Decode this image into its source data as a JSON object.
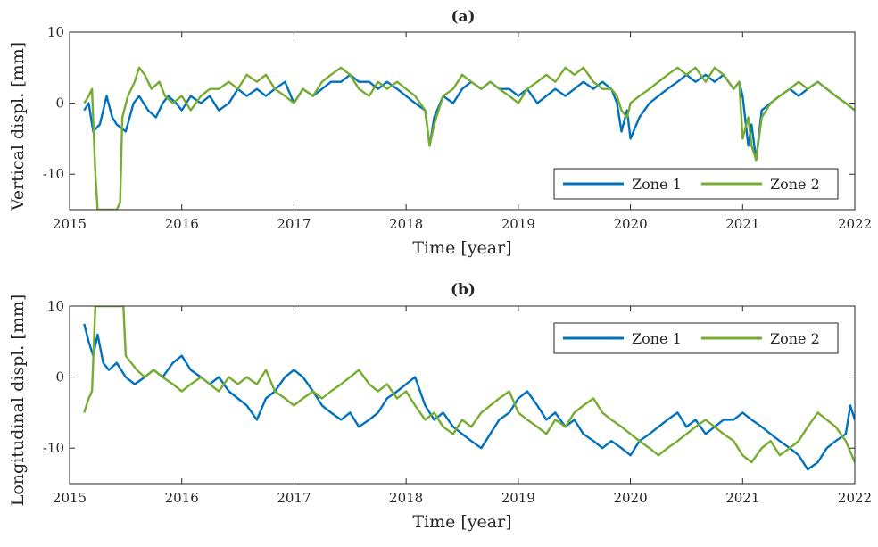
{
  "chart_data": [
    {
      "type": "line",
      "title": "(a)",
      "xlabel": "Time [year]",
      "ylabel": "Vertical displ. [mm]",
      "xlim": [
        2015,
        2022
      ],
      "ylim": [
        -15,
        10
      ],
      "xticks": [
        "2015",
        "2016",
        "2017",
        "2018",
        "2019",
        "2020",
        "2021",
        "2022"
      ],
      "yticks": [
        "-10",
        "0",
        "10"
      ],
      "legend": "bottom-right",
      "grid": false,
      "series": [
        {
          "name": "Zone 1",
          "color": "#0072BD",
          "x": [
            2015.13,
            2015.17,
            2015.21,
            2015.27,
            2015.33,
            2015.38,
            2015.42,
            2015.5,
            2015.57,
            2015.62,
            2015.7,
            2015.77,
            2015.83,
            2015.88,
            2015.95,
            2016.0,
            2016.08,
            2016.17,
            2016.25,
            2016.33,
            2016.42,
            2016.5,
            2016.58,
            2016.67,
            2016.75,
            2016.83,
            2016.92,
            2017.0,
            2017.08,
            2017.17,
            2017.25,
            2017.33,
            2017.42,
            2017.5,
            2017.58,
            2017.67,
            2017.75,
            2017.83,
            2017.92,
            2018.0,
            2018.08,
            2018.17,
            2018.21,
            2018.25,
            2018.33,
            2018.42,
            2018.5,
            2018.58,
            2018.67,
            2018.75,
            2018.83,
            2018.92,
            2019.0,
            2019.08,
            2019.17,
            2019.25,
            2019.33,
            2019.42,
            2019.5,
            2019.58,
            2019.67,
            2019.75,
            2019.83,
            2019.88,
            2019.92,
            2019.97,
            2020.0,
            2020.08,
            2020.17,
            2020.25,
            2020.33,
            2020.42,
            2020.5,
            2020.58,
            2020.67,
            2020.75,
            2020.83,
            2020.92,
            2020.97,
            2021.0,
            2021.05,
            2021.08,
            2021.12,
            2021.17,
            2021.25,
            2021.33,
            2021.42,
            2021.5,
            2021.58,
            2021.67,
            2021.75,
            2021.83,
            2021.92,
            2022.0
          ],
          "y": [
            -1,
            0,
            -4,
            -3,
            1,
            -2,
            -3,
            -4,
            0,
            1,
            -1,
            -2,
            0,
            1,
            0,
            -1,
            1,
            0,
            1,
            -1,
            0,
            2,
            1,
            2,
            1,
            2,
            3,
            0,
            2,
            1,
            2,
            3,
            3,
            4,
            3,
            3,
            2,
            3,
            2,
            1,
            0,
            -1,
            -6,
            -2,
            1,
            0,
            2,
            3,
            2,
            3,
            2,
            2,
            1,
            2,
            0,
            1,
            2,
            1,
            2,
            3,
            2,
            3,
            2,
            0,
            -4,
            -1,
            -5,
            -2,
            0,
            1,
            2,
            3,
            4,
            3,
            4,
            3,
            4,
            2,
            3,
            1,
            -6,
            -3,
            -8,
            -1,
            0,
            1,
            2,
            1,
            2,
            3,
            2,
            1,
            0,
            -1
          ]
        },
        {
          "name": "Zone 2",
          "color": "#77AC30",
          "x": [
            2015.13,
            2015.17,
            2015.2,
            2015.23,
            2015.25,
            2015.3,
            2015.35,
            2015.42,
            2015.45,
            2015.47,
            2015.52,
            2015.58,
            2015.62,
            2015.67,
            2015.73,
            2015.8,
            2015.85,
            2015.92,
            2016.0,
            2016.08,
            2016.17,
            2016.25,
            2016.33,
            2016.42,
            2016.5,
            2016.58,
            2016.67,
            2016.75,
            2016.83,
            2016.92,
            2017.0,
            2017.08,
            2017.17,
            2017.25,
            2017.33,
            2017.42,
            2017.5,
            2017.58,
            2017.67,
            2017.75,
            2017.83,
            2017.92,
            2018.0,
            2018.08,
            2018.17,
            2018.21,
            2018.25,
            2018.33,
            2018.42,
            2018.5,
            2018.58,
            2018.67,
            2018.75,
            2018.83,
            2018.92,
            2019.0,
            2019.08,
            2019.17,
            2019.25,
            2019.33,
            2019.42,
            2019.5,
            2019.58,
            2019.67,
            2019.75,
            2019.83,
            2019.88,
            2019.92,
            2019.97,
            2020.0,
            2020.08,
            2020.17,
            2020.25,
            2020.33,
            2020.42,
            2020.5,
            2020.58,
            2020.67,
            2020.75,
            2020.83,
            2020.92,
            2020.97,
            2021.0,
            2021.05,
            2021.08,
            2021.12,
            2021.17,
            2021.25,
            2021.33,
            2021.42,
            2021.5,
            2021.58,
            2021.67,
            2021.75,
            2021.83,
            2021.92,
            2022.0
          ],
          "y": [
            0,
            1,
            2,
            -10,
            -15,
            -15,
            -15,
            -15,
            -14,
            -2,
            1,
            3,
            5,
            4,
            2,
            3,
            1,
            0,
            1,
            -1,
            1,
            2,
            2,
            3,
            2,
            4,
            3,
            4,
            2,
            1,
            0,
            2,
            1,
            3,
            4,
            5,
            4,
            2,
            1,
            3,
            2,
            3,
            2,
            1,
            -1,
            -6,
            -3,
            1,
            2,
            4,
            3,
            2,
            3,
            2,
            1,
            0,
            2,
            3,
            4,
            3,
            5,
            4,
            5,
            3,
            2,
            2,
            1,
            -1,
            -2,
            0,
            1,
            2,
            3,
            4,
            5,
            4,
            5,
            3,
            5,
            4,
            2,
            3,
            -5,
            -2,
            -6,
            -8,
            -2,
            0,
            1,
            2,
            3,
            2,
            3,
            2,
            1,
            0,
            -1
          ]
        }
      ]
    },
    {
      "type": "line",
      "title": "(b)",
      "xlabel": "Time [year]",
      "ylabel": "Longitudinal displ. [mm]",
      "xlim": [
        2015,
        2022
      ],
      "ylim": [
        -15,
        10
      ],
      "xticks": [
        "2015",
        "2016",
        "2017",
        "2018",
        "2019",
        "2020",
        "2021",
        "2022"
      ],
      "yticks": [
        "-10",
        "0",
        "10"
      ],
      "legend": "top-right",
      "grid": false,
      "series": [
        {
          "name": "Zone 1",
          "color": "#0072BD",
          "x": [
            2015.13,
            2015.17,
            2015.21,
            2015.25,
            2015.3,
            2015.35,
            2015.42,
            2015.5,
            2015.58,
            2015.67,
            2015.75,
            2015.83,
            2015.92,
            2016.0,
            2016.08,
            2016.17,
            2016.25,
            2016.33,
            2016.42,
            2016.5,
            2016.58,
            2016.67,
            2016.75,
            2016.83,
            2016.92,
            2017.0,
            2017.08,
            2017.17,
            2017.25,
            2017.33,
            2017.42,
            2017.5,
            2017.58,
            2017.67,
            2017.75,
            2017.83,
            2017.92,
            2018.0,
            2018.08,
            2018.17,
            2018.25,
            2018.33,
            2018.42,
            2018.5,
            2018.58,
            2018.67,
            2018.75,
            2018.83,
            2018.92,
            2019.0,
            2019.08,
            2019.17,
            2019.25,
            2019.33,
            2019.42,
            2019.5,
            2019.58,
            2019.67,
            2019.75,
            2019.83,
            2019.92,
            2020.0,
            2020.08,
            2020.17,
            2020.25,
            2020.33,
            2020.42,
            2020.5,
            2020.58,
            2020.67,
            2020.75,
            2020.83,
            2020.92,
            2021.0,
            2021.08,
            2021.17,
            2021.25,
            2021.33,
            2021.42,
            2021.5,
            2021.58,
            2021.67,
            2021.75,
            2021.83,
            2021.92,
            2021.96,
            2022.0
          ],
          "y": [
            7.5,
            5,
            3,
            6,
            2,
            1,
            2,
            0,
            -1,
            0,
            1,
            0,
            2,
            3,
            1,
            0,
            -1,
            0,
            -2,
            -3,
            -4,
            -6,
            -3,
            -2,
            0,
            1,
            0,
            -2,
            -4,
            -5,
            -6,
            -5,
            -7,
            -6,
            -5,
            -3,
            -2,
            -1,
            0,
            -4,
            -6,
            -5,
            -7,
            -8,
            -9,
            -10,
            -8,
            -6,
            -5,
            -3,
            -2,
            -4,
            -6,
            -5,
            -7,
            -6,
            -8,
            -9,
            -10,
            -9,
            -10,
            -11,
            -9,
            -8,
            -7,
            -6,
            -5,
            -7,
            -6,
            -8,
            -7,
            -6,
            -6,
            -5,
            -6,
            -7,
            -8,
            -9,
            -10,
            -11,
            -13,
            -12,
            -10,
            -9,
            -8,
            -4,
            -6
          ]
        },
        {
          "name": "Zone 2",
          "color": "#77AC30",
          "x": [
            2015.13,
            2015.17,
            2015.2,
            2015.23,
            2015.25,
            2015.3,
            2015.35,
            2015.42,
            2015.45,
            2015.48,
            2015.5,
            2015.55,
            2015.6,
            2015.67,
            2015.75,
            2015.83,
            2015.92,
            2016.0,
            2016.08,
            2016.17,
            2016.25,
            2016.33,
            2016.42,
            2016.5,
            2016.58,
            2016.67,
            2016.75,
            2016.83,
            2016.92,
            2017.0,
            2017.08,
            2017.17,
            2017.25,
            2017.33,
            2017.42,
            2017.5,
            2017.58,
            2017.67,
            2017.75,
            2017.83,
            2017.92,
            2018.0,
            2018.08,
            2018.17,
            2018.25,
            2018.33,
            2018.42,
            2018.5,
            2018.58,
            2018.67,
            2018.75,
            2018.83,
            2018.92,
            2019.0,
            2019.08,
            2019.17,
            2019.25,
            2019.33,
            2019.42,
            2019.5,
            2019.58,
            2019.67,
            2019.75,
            2019.83,
            2019.92,
            2020.0,
            2020.08,
            2020.17,
            2020.25,
            2020.33,
            2020.42,
            2020.5,
            2020.58,
            2020.67,
            2020.75,
            2020.83,
            2020.92,
            2021.0,
            2021.08,
            2021.17,
            2021.25,
            2021.33,
            2021.42,
            2021.5,
            2021.58,
            2021.67,
            2021.75,
            2021.83,
            2021.92,
            2022.0
          ],
          "y": [
            -5,
            -3,
            -2,
            10,
            10,
            10,
            10,
            10,
            10,
            10,
            3,
            2,
            1,
            0,
            1,
            0,
            -1,
            -2,
            -1,
            0,
            -1,
            -2,
            0,
            -1,
            0,
            -1,
            1,
            -2,
            -3,
            -4,
            -3,
            -2,
            -3,
            -2,
            -1,
            0,
            1,
            -1,
            -2,
            -1,
            -3,
            -2,
            -4,
            -6,
            -5,
            -7,
            -8,
            -6,
            -7,
            -5,
            -4,
            -3,
            -2,
            -5,
            -6,
            -7,
            -8,
            -6,
            -7,
            -5,
            -4,
            -3,
            -5,
            -6,
            -7,
            -8,
            -9,
            -10,
            -11,
            -10,
            -9,
            -8,
            -7,
            -6,
            -7,
            -8,
            -9,
            -11,
            -12,
            -10,
            -9,
            -11,
            -10,
            -9,
            -7,
            -5,
            -6,
            -7,
            -9,
            -12
          ]
        }
      ]
    }
  ]
}
